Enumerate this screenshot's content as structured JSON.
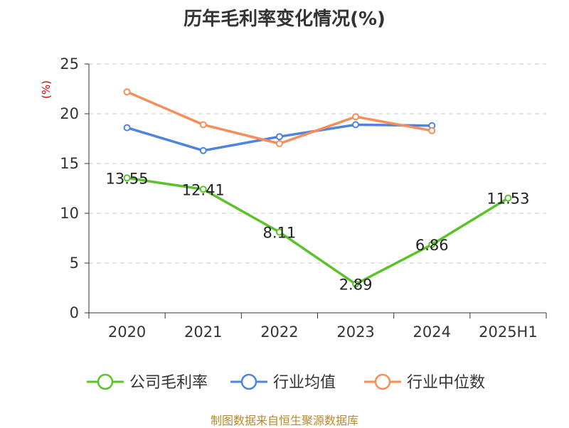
{
  "chart_data": {
    "type": "line",
    "title": "历年毛利率变化情况(%)",
    "ylabel": "(%)",
    "xlabel": "",
    "categories": [
      "2020",
      "2021",
      "2022",
      "2023",
      "2024",
      "2025H1"
    ],
    "ylim": [
      0,
      25
    ],
    "yticks": [
      0,
      5,
      10,
      15,
      20,
      25
    ],
    "grid": true,
    "legend": "bottom",
    "series": [
      {
        "name": "公司毛利率",
        "color": "#5cc22b",
        "values": [
          13.55,
          12.41,
          8.11,
          2.89,
          6.86,
          11.53
        ],
        "labels": [
          "13.55",
          "12.41",
          "8.11",
          "2.89",
          "6.86",
          "11.53"
        ]
      },
      {
        "name": "行业均值",
        "color": "#4f83e0",
        "values": [
          18.6,
          16.3,
          17.7,
          18.9,
          18.8,
          null
        ]
      },
      {
        "name": "行业中位数",
        "color": "#f58e5a",
        "values": [
          22.2,
          18.9,
          17.0,
          19.7,
          18.3,
          null
        ]
      }
    ]
  },
  "footer": {
    "source": "制图数据来自恒生聚源数据库"
  }
}
